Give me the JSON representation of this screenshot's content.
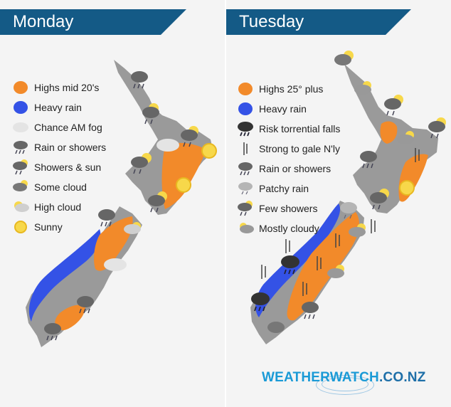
{
  "days": {
    "monday": "Monday",
    "tuesday": "Tuesday"
  },
  "legend_monday": [
    {
      "label": "Highs mid 20's",
      "icon": "orange-blob"
    },
    {
      "label": "Heavy rain",
      "icon": "blue-blob"
    },
    {
      "label": "Chance AM fog",
      "icon": "fog"
    },
    {
      "label": "Rain or showers",
      "icon": "rain-cloud"
    },
    {
      "label": "Showers & sun",
      "icon": "showers-sun"
    },
    {
      "label": "Some cloud",
      "icon": "cloud"
    },
    {
      "label": "High cloud",
      "icon": "high-cloud"
    },
    {
      "label": "Sunny",
      "icon": "sun"
    }
  ],
  "legend_tuesday": [
    {
      "label": "Highs 25° plus",
      "icon": "orange-blob"
    },
    {
      "label": "Heavy rain",
      "icon": "blue-blob"
    },
    {
      "label": "Risk torrential falls",
      "icon": "dark-rain-cloud"
    },
    {
      "label": "Strong to gale N'ly",
      "icon": "wind"
    },
    {
      "label": "Rain or showers",
      "icon": "rain-cloud"
    },
    {
      "label": "Patchy rain",
      "icon": "patchy-rain"
    },
    {
      "label": "Few showers",
      "icon": "showers-sun"
    },
    {
      "label": "Mostly cloudy",
      "icon": "mostly-cloudy"
    }
  ],
  "brand": {
    "part1": "WEATHER",
    "part2": "WATCH",
    "part3": ".CO.NZ"
  },
  "colors": {
    "banner": "#145a86",
    "land": "#9a9a9a",
    "warm": "#f28a2a",
    "heavy_rain": "#3452e6",
    "brand": "#1a9ad6"
  }
}
